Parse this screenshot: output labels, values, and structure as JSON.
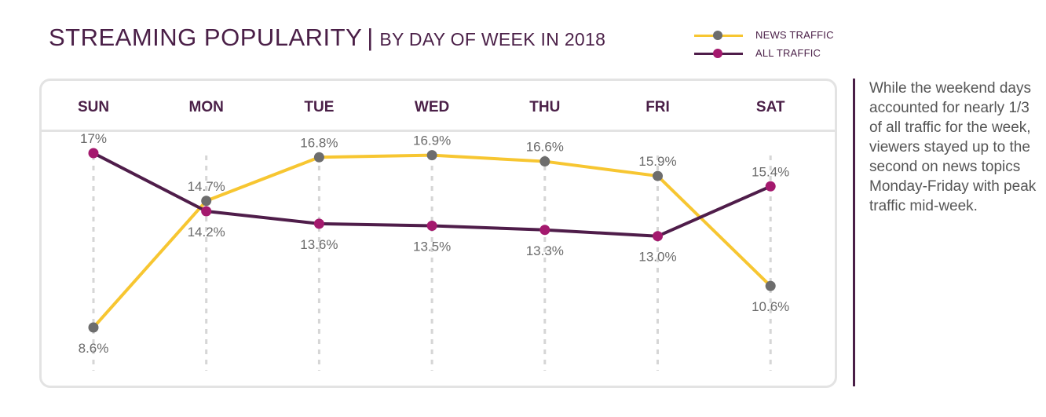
{
  "header": {
    "title": "STREAMING POPULARITY",
    "separator": "|",
    "subtitle": "BY DAY OF WEEK IN 2018"
  },
  "legend": [
    {
      "label": "NEWS TRAFFIC",
      "line_color": "#f7c631",
      "dot_color": "#6d6d6d"
    },
    {
      "label": "ALL TRAFFIC",
      "line_color": "#4f1d4a",
      "dot_color": "#a4196e"
    }
  ],
  "side_note": "While the weekend days accounted for nearly 1/3 of all traffic for the week, viewers stayed up to the second on news topics Monday-Friday with peak traffic mid-week.",
  "colors": {
    "news_line": "#f7c631",
    "news_marker": "#6d6d6d",
    "all_line": "#4f1d4a",
    "all_marker": "#a4196e",
    "accent": "#4a1f47",
    "panel_border": "#e3e3e3"
  },
  "chart_data": {
    "type": "line",
    "categories": [
      "SUN",
      "MON",
      "TUE",
      "WED",
      "THU",
      "FRI",
      "SAT"
    ],
    "series": [
      {
        "name": "NEWS TRAFFIC",
        "values": [
          8.6,
          14.7,
          16.8,
          16.9,
          16.6,
          15.9,
          10.6
        ],
        "labels": [
          "8.6%",
          "14.7%",
          "16.8%",
          "16.9%",
          "16.6%",
          "15.9%",
          "10.6%"
        ]
      },
      {
        "name": "ALL TRAFFIC",
        "values": [
          17,
          14.2,
          13.6,
          13.5,
          13.3,
          13.0,
          15.4
        ],
        "labels": [
          "17%",
          "14.2%",
          "13.6%",
          "13.5%",
          "13.3%",
          "13.0%",
          "15.4%"
        ]
      }
    ],
    "ylim": [
      8.0,
      17.5
    ],
    "grid": "dashed vertical per category",
    "legend_position": "top-right"
  }
}
